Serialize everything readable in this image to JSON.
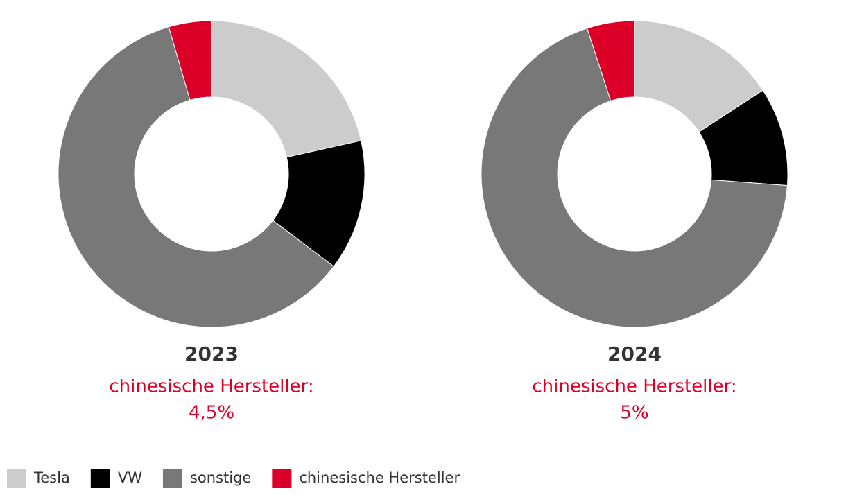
{
  "legend": {
    "categories": [
      "Tesla",
      "VW",
      "sonstige",
      "chinesische Hersteller"
    ],
    "colors": [
      "#cccccc",
      "#000000",
      "#787878",
      "#dc0028"
    ]
  },
  "chart_data": [
    {
      "type": "pie",
      "title": "2023",
      "annotation": "chinesische Hersteller:",
      "values": [
        21.5,
        13.8,
        60.2,
        4.5
      ],
      "value_labels": [
        null,
        null,
        null,
        "4,5%"
      ]
    },
    {
      "type": "pie",
      "title": "2024",
      "annotation": "chinesische Hersteller:",
      "values": [
        15.8,
        10.4,
        68.8,
        5
      ],
      "value_labels": [
        null,
        null,
        null,
        "5%"
      ]
    }
  ]
}
